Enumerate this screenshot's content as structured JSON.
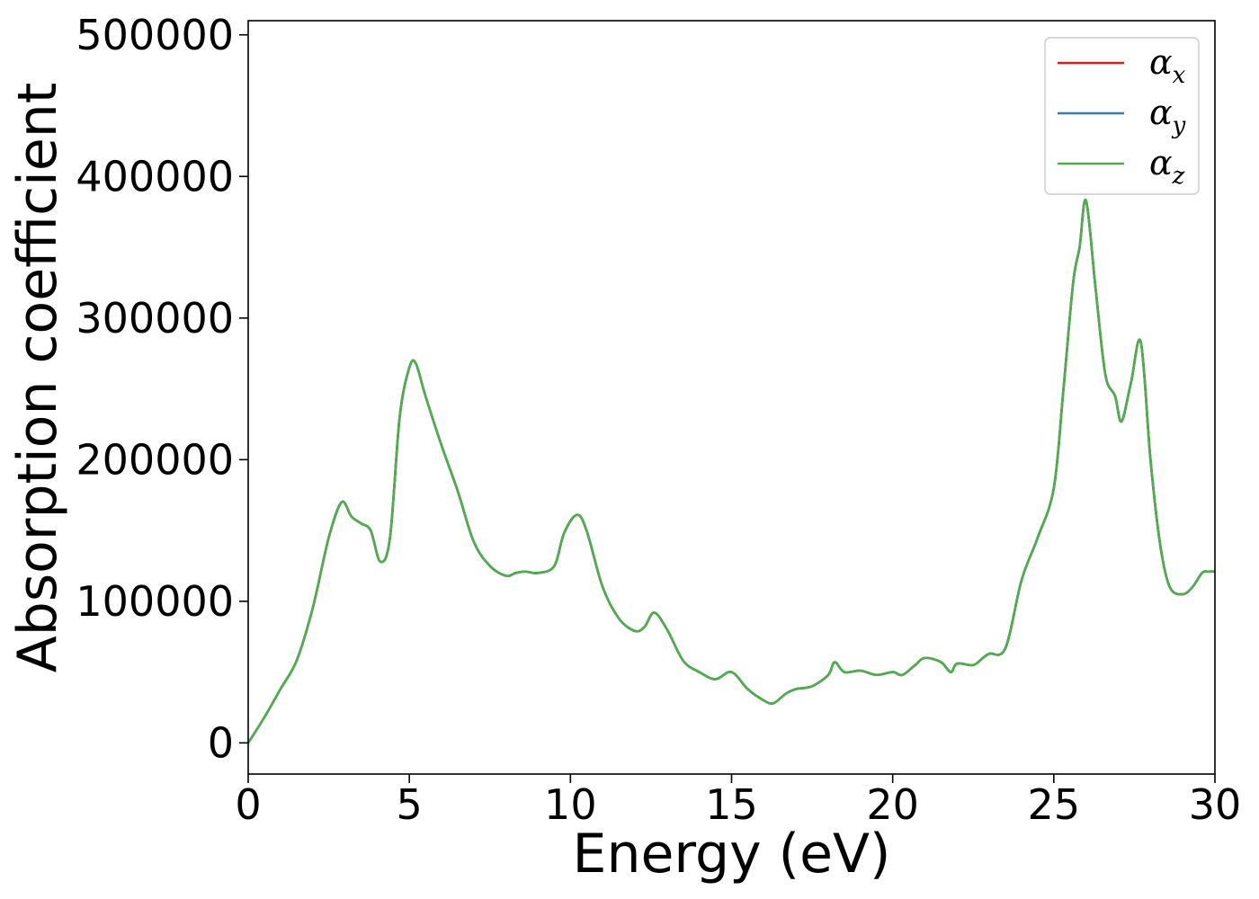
{
  "chart_data": {
    "type": "line",
    "title": "",
    "xlabel": "Energy (eV)",
    "ylabel": "Absorption coefficient",
    "xlim": [
      0,
      30
    ],
    "ylim": [
      -22000,
      510000
    ],
    "xticks": [
      0,
      5,
      10,
      15,
      20,
      25,
      30
    ],
    "xtick_labels": [
      "0",
      "5",
      "10",
      "15",
      "20",
      "25",
      "30"
    ],
    "yticks": [
      0,
      100000,
      200000,
      300000,
      400000,
      500000
    ],
    "ytick_labels": [
      "0",
      "100000",
      "200000",
      "300000",
      "400000",
      "500000"
    ],
    "grid": false,
    "legend_position": "top-right",
    "x": [
      0,
      0.5,
      1,
      1.5,
      2,
      2.5,
      2.9,
      3.2,
      3.5,
      3.8,
      4.1,
      4.4,
      4.7,
      5.0,
      5.2,
      5.5,
      6.0,
      6.5,
      7.0,
      7.5,
      8.0,
      8.3,
      8.6,
      9.0,
      9.5,
      9.8,
      10.2,
      10.5,
      11.0,
      11.5,
      12.0,
      12.3,
      12.6,
      13.0,
      13.5,
      14.0,
      14.5,
      15.0,
      15.5,
      16.0,
      16.3,
      16.7,
      17.0,
      17.5,
      18.0,
      18.2,
      18.5,
      19.0,
      19.5,
      20.0,
      20.3,
      20.7,
      21.0,
      21.5,
      21.8,
      22.0,
      22.5,
      22.8,
      23.0,
      23.5,
      24.0,
      24.5,
      25.0,
      25.3,
      25.6,
      25.8,
      26.0,
      26.3,
      26.6,
      26.9,
      27.1,
      27.4,
      27.7,
      28.0,
      28.3,
      28.6,
      29.0,
      29.3,
      29.6,
      29.8,
      30.0
    ],
    "series": [
      {
        "name": "αx",
        "color": "#e41a1c",
        "values": [
          0,
          18000,
          38000,
          58000,
          95000,
          145000,
          170000,
          160000,
          155000,
          150000,
          128000,
          145000,
          230000,
          265000,
          268000,
          245000,
          210000,
          178000,
          142000,
          125000,
          118000,
          120000,
          121000,
          120000,
          125000,
          148000,
          161000,
          150000,
          110000,
          88000,
          79000,
          82000,
          92000,
          80000,
          58000,
          50000,
          45000,
          50000,
          38000,
          30000,
          28000,
          35000,
          38000,
          40000,
          48000,
          57000,
          50000,
          51000,
          48000,
          50000,
          48000,
          55000,
          60000,
          57000,
          50000,
          56000,
          55000,
          60000,
          63000,
          67000,
          115000,
          145000,
          180000,
          250000,
          325000,
          350000,
          383000,
          320000,
          260000,
          245000,
          227000,
          255000,
          283000,
          200000,
          140000,
          110000,
          105000,
          110000,
          120000,
          121000,
          121000
        ]
      },
      {
        "name": "αy",
        "color": "#377eb8",
        "values": [
          0,
          18000,
          38000,
          58000,
          95000,
          145000,
          170000,
          160000,
          155000,
          150000,
          128000,
          145000,
          230000,
          265000,
          268000,
          245000,
          210000,
          178000,
          142000,
          125000,
          118000,
          120000,
          121000,
          120000,
          125000,
          148000,
          161000,
          150000,
          110000,
          88000,
          79000,
          82000,
          92000,
          80000,
          58000,
          50000,
          45000,
          50000,
          38000,
          30000,
          28000,
          35000,
          38000,
          40000,
          48000,
          57000,
          50000,
          51000,
          48000,
          50000,
          48000,
          55000,
          60000,
          57000,
          50000,
          56000,
          55000,
          60000,
          63000,
          67000,
          115000,
          145000,
          180000,
          250000,
          325000,
          350000,
          383000,
          320000,
          260000,
          245000,
          227000,
          255000,
          283000,
          200000,
          140000,
          110000,
          105000,
          110000,
          120000,
          121000,
          121000
        ]
      },
      {
        "name": "αz",
        "color": "#4daf4a",
        "values": [
          0,
          18000,
          38000,
          58000,
          95000,
          145000,
          170000,
          160000,
          155000,
          150000,
          128000,
          145000,
          230000,
          265000,
          268000,
          245000,
          210000,
          178000,
          142000,
          125000,
          118000,
          120000,
          121000,
          120000,
          125000,
          148000,
          161000,
          150000,
          110000,
          88000,
          79000,
          82000,
          92000,
          80000,
          58000,
          50000,
          45000,
          50000,
          38000,
          30000,
          28000,
          35000,
          38000,
          40000,
          48000,
          57000,
          50000,
          51000,
          48000,
          50000,
          48000,
          55000,
          60000,
          57000,
          50000,
          56000,
          55000,
          60000,
          63000,
          67000,
          115000,
          145000,
          180000,
          250000,
          325000,
          350000,
          383000,
          320000,
          260000,
          245000,
          227000,
          255000,
          283000,
          200000,
          140000,
          110000,
          105000,
          110000,
          120000,
          121000,
          121000
        ]
      }
    ],
    "legend": [
      {
        "base": "α",
        "sub": "x",
        "color": "#e41a1c"
      },
      {
        "base": "α",
        "sub": "y",
        "color": "#377eb8"
      },
      {
        "base": "α",
        "sub": "z",
        "color": "#4daf4a"
      }
    ]
  }
}
